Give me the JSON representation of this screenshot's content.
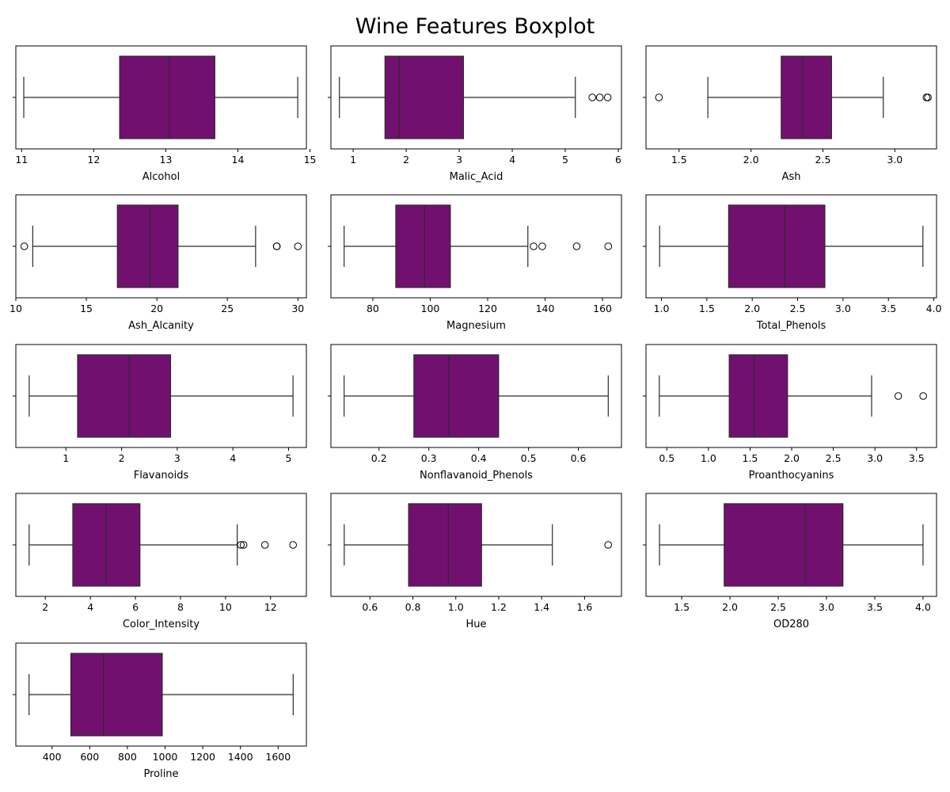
{
  "title": "Wine Features Boxplot",
  "colors": {
    "box_fill": "#721070",
    "line": "#2b2b2b",
    "flier_edge": "#000000",
    "axes_edge": "#000000"
  },
  "chart_data": [
    {
      "type": "boxplot",
      "xlabel": "Alcohol",
      "xlim": [
        10.92,
        14.95
      ],
      "ticks": [
        11,
        12,
        13,
        14,
        15
      ],
      "tick_labels": [
        "11",
        "12",
        "13",
        "14",
        "15"
      ],
      "whisker_low": 11.03,
      "q1": 12.36,
      "median": 13.05,
      "q3": 13.68,
      "whisker_high": 14.83,
      "fliers": []
    },
    {
      "type": "boxplot",
      "xlabel": "Malic_Acid",
      "xlim": [
        0.58,
        6.06
      ],
      "ticks": [
        1,
        2,
        3,
        4,
        5,
        6
      ],
      "tick_labels": [
        "1",
        "2",
        "3",
        "4",
        "5",
        "6"
      ],
      "whisker_low": 0.74,
      "q1": 1.6,
      "median": 1.87,
      "q3": 3.08,
      "whisker_high": 5.19,
      "fliers": [
        5.51,
        5.65,
        5.8
      ]
    },
    {
      "type": "boxplot",
      "xlabel": "Ash",
      "xlim": [
        1.27,
        3.29
      ],
      "ticks": [
        1.5,
        2.0,
        2.5,
        3.0
      ],
      "tick_labels": [
        "1.5",
        "2.0",
        "2.5",
        "3.0"
      ],
      "whisker_low": 1.7,
      "q1": 2.21,
      "median": 2.36,
      "q3": 2.56,
      "whisker_high": 2.92,
      "fliers": [
        1.36,
        3.22,
        3.23
      ]
    },
    {
      "type": "boxplot",
      "xlabel": "Ash_Alcanity",
      "xlim": [
        10.0,
        30.6
      ],
      "ticks": [
        10,
        15,
        20,
        25,
        30
      ],
      "tick_labels": [
        "10",
        "15",
        "20",
        "25",
        "30"
      ],
      "whisker_low": 11.2,
      "q1": 17.2,
      "median": 19.5,
      "q3": 21.5,
      "whisker_high": 27.0,
      "fliers": [
        10.6,
        28.5,
        28.5,
        30.0
      ]
    },
    {
      "type": "boxplot",
      "xlabel": "Magnesium",
      "xlim": [
        65.4,
        166.6
      ],
      "ticks": [
        80,
        100,
        120,
        140,
        160
      ],
      "tick_labels": [
        "80",
        "100",
        "120",
        "140",
        "160"
      ],
      "whisker_low": 70,
      "q1": 88,
      "median": 98,
      "q3": 107,
      "whisker_high": 134,
      "fliers": [
        136,
        139,
        151,
        162
      ]
    },
    {
      "type": "boxplot",
      "xlabel": "Total_Phenols",
      "xlim": [
        0.83,
        4.03
      ],
      "ticks": [
        1.0,
        1.5,
        2.0,
        2.5,
        3.0,
        3.5,
        4.0
      ],
      "tick_labels": [
        "1.0",
        "1.5",
        "2.0",
        "2.5",
        "3.0",
        "3.5",
        "4.0"
      ],
      "whisker_low": 0.98,
      "q1": 1.74,
      "median": 2.36,
      "q3": 2.8,
      "whisker_high": 3.88,
      "fliers": []
    },
    {
      "type": "boxplot",
      "xlabel": "Flavanoids",
      "xlim": [
        0.1,
        5.32
      ],
      "ticks": [
        1,
        2,
        3,
        4,
        5
      ],
      "tick_labels": [
        "1",
        "2",
        "3",
        "4",
        "5"
      ],
      "whisker_low": 0.34,
      "q1": 1.21,
      "median": 2.14,
      "q3": 2.88,
      "whisker_high": 5.08,
      "fliers": []
    },
    {
      "type": "boxplot",
      "xlabel": "Nonflavanoid_Phenols",
      "xlim": [
        0.1035,
        0.6865
      ],
      "ticks": [
        0.2,
        0.3,
        0.4,
        0.5,
        0.6
      ],
      "tick_labels": [
        "0.2",
        "0.3",
        "0.4",
        "0.5",
        "0.6"
      ],
      "whisker_low": 0.13,
      "q1": 0.27,
      "median": 0.34,
      "q3": 0.44,
      "whisker_high": 0.66,
      "fliers": []
    },
    {
      "type": "boxplot",
      "xlabel": "Proanthocyanins",
      "xlim": [
        0.25,
        3.74
      ],
      "ticks": [
        0.5,
        1.0,
        1.5,
        2.0,
        2.5,
        3.0,
        3.5
      ],
      "tick_labels": [
        "0.5",
        "1.0",
        "1.5",
        "2.0",
        "2.5",
        "3.0",
        "3.5"
      ],
      "whisker_low": 0.41,
      "q1": 1.25,
      "median": 1.55,
      "q3": 1.95,
      "whisker_high": 2.96,
      "fliers": [
        3.28,
        3.58
      ]
    },
    {
      "type": "boxplot",
      "xlabel": "Color_Intensity",
      "xlim": [
        0.69,
        13.59
      ],
      "ticks": [
        2,
        4,
        6,
        8,
        10,
        12
      ],
      "tick_labels": [
        "2",
        "4",
        "6",
        "8",
        "10",
        "12"
      ],
      "whisker_low": 1.28,
      "q1": 3.22,
      "median": 4.69,
      "q3": 6.2,
      "whisker_high": 10.52,
      "fliers": [
        10.68,
        10.8,
        11.75,
        13.0
      ]
    },
    {
      "type": "boxplot",
      "xlabel": "Hue",
      "xlim": [
        0.418,
        1.772
      ],
      "ticks": [
        0.6,
        0.8,
        1.0,
        1.2,
        1.4,
        1.6
      ],
      "tick_labels": [
        "0.6",
        "0.8",
        "1.0",
        "1.2",
        "1.4",
        "1.6"
      ],
      "whisker_low": 0.48,
      "q1": 0.78,
      "median": 0.965,
      "q3": 1.12,
      "whisker_high": 1.45,
      "fliers": [
        1.71
      ]
    },
    {
      "type": "boxplot",
      "xlabel": "OD280",
      "xlim": [
        1.13,
        4.14
      ],
      "ticks": [
        1.5,
        2.0,
        2.5,
        3.0,
        3.5,
        4.0
      ],
      "tick_labels": [
        "1.5",
        "2.0",
        "2.5",
        "3.0",
        "3.5",
        "4.0"
      ],
      "whisker_low": 1.27,
      "q1": 1.94,
      "median": 2.78,
      "q3": 3.17,
      "whisker_high": 4.0,
      "fliers": []
    },
    {
      "type": "boxplot",
      "xlabel": "Proline",
      "xlim": [
        208,
        1750
      ],
      "ticks": [
        400,
        600,
        800,
        1000,
        1200,
        1400,
        1600
      ],
      "tick_labels": [
        "400",
        "600",
        "800",
        "1000",
        "1200",
        "1400",
        "1600"
      ],
      "whisker_low": 278,
      "q1": 500,
      "median": 673,
      "q3": 985,
      "whisker_high": 1680,
      "fliers": []
    }
  ]
}
